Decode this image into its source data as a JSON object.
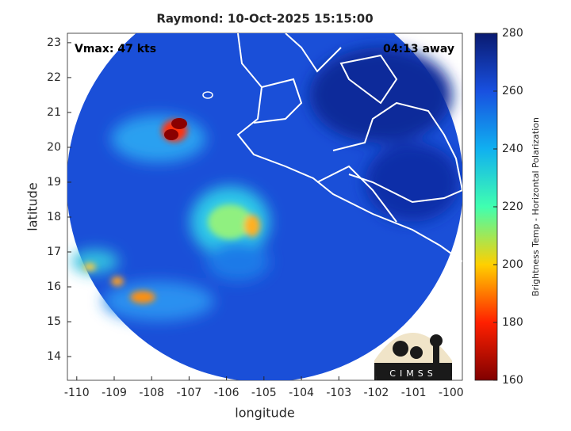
{
  "chart_data": {
    "type": "map",
    "title": "Raymond: 10-Oct-2025 15:15:00",
    "annotations": [
      "Vmax: 47 kts",
      "04:13 away"
    ],
    "logo": "CIMSS",
    "x_label": "longitude",
    "y_label": "latitude",
    "xlim": [
      -110.25,
      -99.7
    ],
    "ylim": [
      13.32,
      23.27
    ],
    "xticks": [
      -110,
      -109,
      -108,
      -107,
      -106,
      -105,
      -104,
      -103,
      -102,
      -101,
      -100
    ],
    "yticks": [
      14,
      15,
      16,
      17,
      18,
      19,
      20,
      21,
      22,
      23
    ],
    "colorbar": {
      "label": "Brightness Temp - Horizontal Polarization",
      "lim": [
        160,
        280
      ],
      "ticks": [
        160,
        180,
        200,
        220,
        240,
        260,
        280
      ],
      "colors": [
        "#800000",
        "#ff2000",
        "#ffd000",
        "#40ffb0",
        "#10b0f0",
        "#1850e0",
        "#0a1a70"
      ]
    }
  }
}
